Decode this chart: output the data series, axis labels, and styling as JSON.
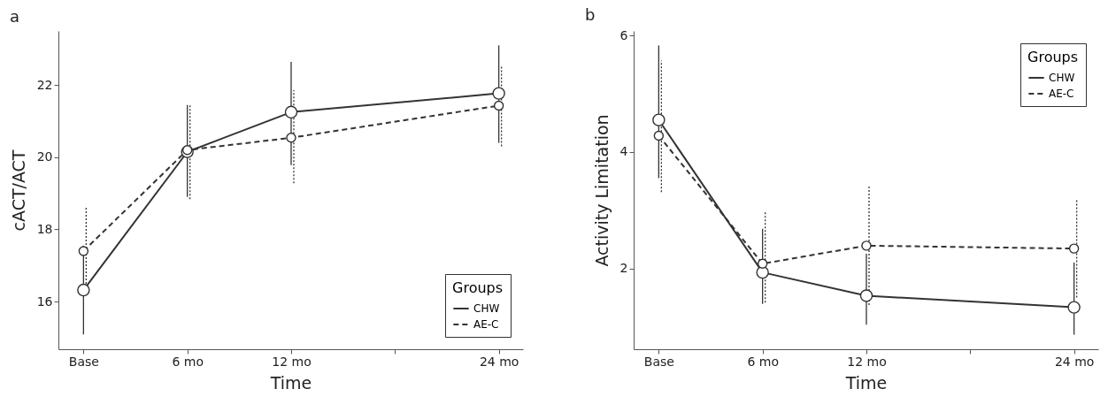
{
  "chart_data": [
    {
      "type": "line",
      "title": "a",
      "xlabel": "Time",
      "ylabel": "cACT/ACT",
      "legend_title": "Groups",
      "legend": "bottom right",
      "grid": false,
      "marker": "circle",
      "x": [
        0,
        6,
        12,
        24
      ],
      "xlim": [
        -1.45,
        25.4
      ],
      "xticks": [
        {
          "value": 0,
          "label": "Base"
        },
        {
          "value": 6,
          "label": "6 mo"
        },
        {
          "value": 12,
          "label": "12 mo"
        },
        {
          "value": 18,
          "label": null
        },
        {
          "value": 24,
          "label": "24 mo"
        }
      ],
      "ylim": [
        14.68,
        23.5
      ],
      "yticks": [
        16,
        18,
        20,
        22
      ],
      "series": [
        {
          "name": "CHW",
          "color": "#333333",
          "line_style": "solid",
          "values": [
            16.32,
            20.15,
            21.25,
            21.77
          ],
          "errors": [
            [
              15.09,
              17.55
            ],
            [
              18.9,
              21.45
            ],
            [
              19.78,
              22.64
            ],
            [
              20.4,
              23.1
            ]
          ]
        },
        {
          "name": "AE-C",
          "color": "#333333",
          "line_style": "dashed",
          "values": [
            17.4,
            20.2,
            20.54,
            21.43
          ],
          "errors": [
            [
              16.2,
              18.6
            ],
            [
              18.84,
              21.45
            ],
            [
              19.28,
              21.86
            ],
            [
              20.3,
              22.55
            ]
          ]
        }
      ]
    },
    {
      "type": "line",
      "title": "b",
      "xlabel": "Time",
      "ylabel": "Activity Limitation",
      "legend_title": "Groups",
      "legend": "top right",
      "grid": false,
      "marker": "circle",
      "x": [
        0,
        6,
        12,
        24
      ],
      "xlim": [
        -1.45,
        25.4
      ],
      "xticks": [
        {
          "value": 0,
          "label": "Base"
        },
        {
          "value": 6,
          "label": "6 mo"
        },
        {
          "value": 12,
          "label": "12 mo"
        },
        {
          "value": 18,
          "label": null
        },
        {
          "value": 24,
          "label": "24 mo"
        }
      ],
      "ylim": [
        0.61,
        6.08
      ],
      "yticks": [
        2,
        4,
        6
      ],
      "series": [
        {
          "name": "CHW",
          "color": "#333333",
          "line_style": "solid",
          "values": [
            4.55,
            1.93,
            1.53,
            1.33
          ],
          "errors": [
            [
              3.55,
              5.83
            ],
            [
              1.39,
              2.68
            ],
            [
              1.03,
              2.25
            ],
            [
              0.86,
              2.1
            ]
          ]
        },
        {
          "name": "AE-C",
          "color": "#333333",
          "line_style": "dashed",
          "values": [
            4.28,
            2.08,
            2.39,
            2.34
          ],
          "errors": [
            [
              3.31,
              5.57
            ],
            [
              1.41,
              2.99
            ],
            [
              1.37,
              3.41
            ],
            [
              1.5,
              3.19
            ]
          ]
        }
      ]
    }
  ]
}
